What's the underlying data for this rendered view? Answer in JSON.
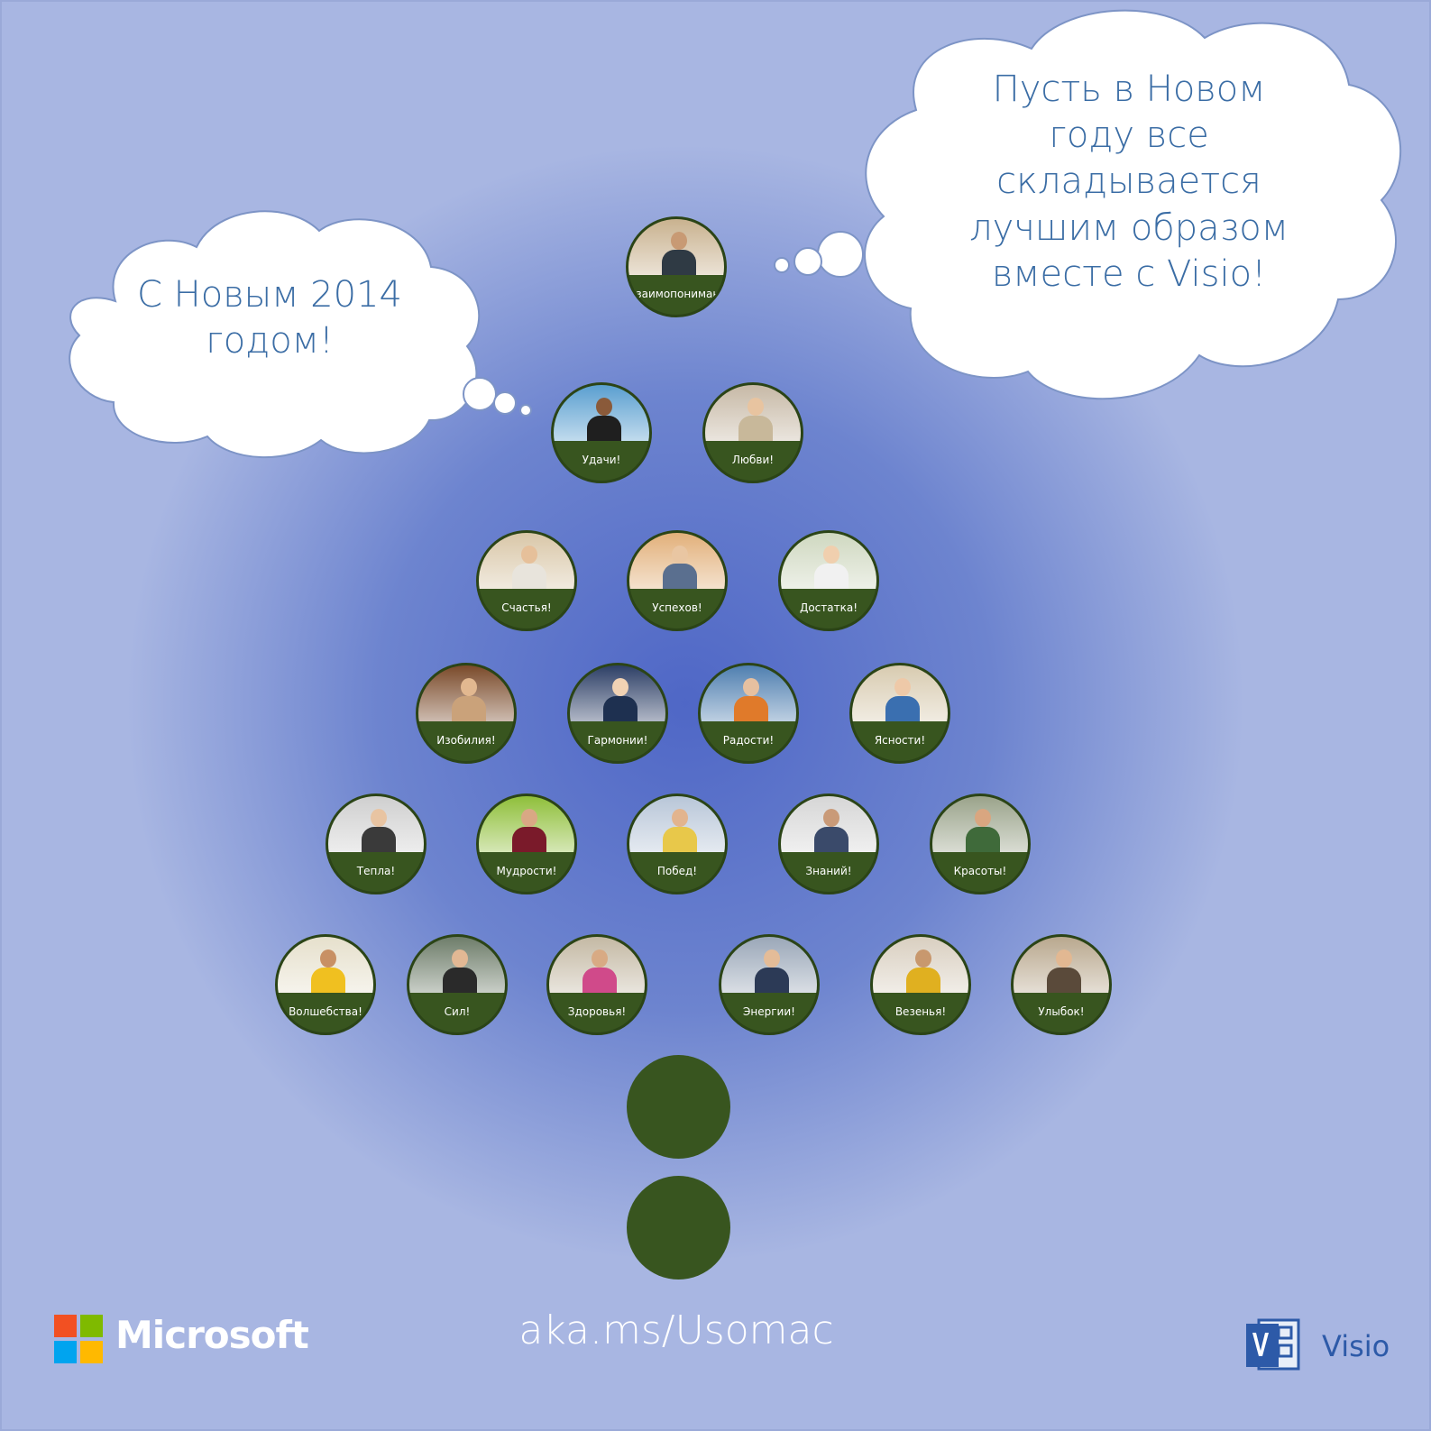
{
  "greetings": {
    "left": [
      "С Новым 2014",
      "годом!"
    ],
    "right": [
      "Пусть в Новом",
      "году все",
      "складывается",
      "лучшим образом",
      "вместе с Visio!"
    ]
  },
  "ornaments": [
    "Взаимопонимания!",
    "Удачи!",
    "Любви!",
    "Счастья!",
    "Успехов!",
    "Достатка!",
    "Изобилия!",
    "Гармонии!",
    "Радости!",
    "Ясности!",
    "Тепла!",
    "Мудрости!",
    "Побед!",
    "Знаний!",
    "Красоты!",
    "Волшебства!",
    "Сил!",
    "Здоровья!",
    "Энергии!",
    "Везенья!",
    "Улыбок!"
  ],
  "footer": {
    "url": "aka.ms/Usomac",
    "brand": "Microsoft",
    "product": "Visio",
    "logo_colors": [
      "#f25022",
      "#7fba00",
      "#00a4ef",
      "#ffb900"
    ]
  },
  "colors": {
    "ornament": "#38551f",
    "cloud_text": "#3b6da5",
    "background": "#6d84cf"
  },
  "icons": [
    "microsoft-logo-icon",
    "visio-logo-icon"
  ]
}
